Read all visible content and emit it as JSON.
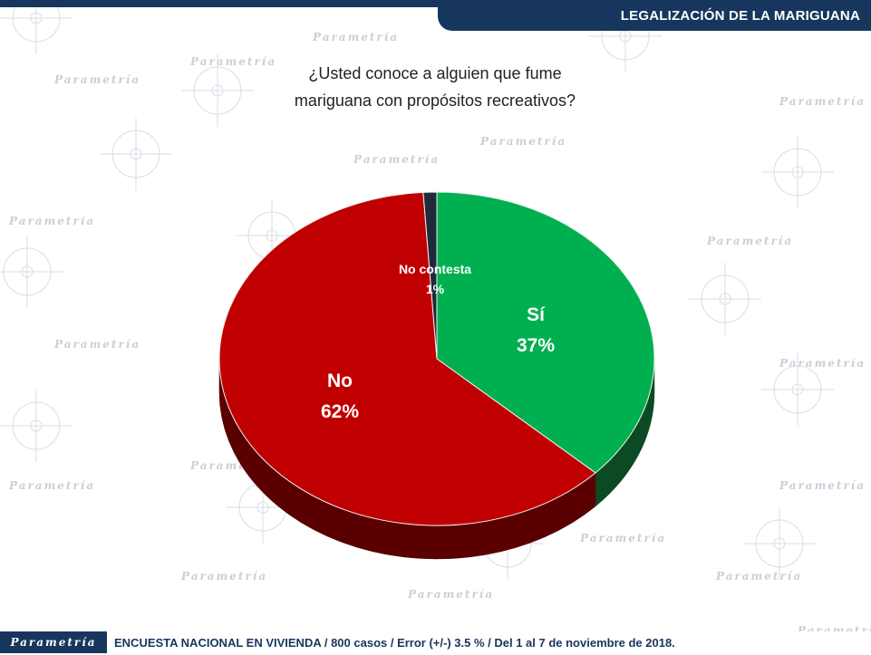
{
  "header": {
    "title": "LEGALIZACIÓN DE LA MARIGUANA"
  },
  "question": {
    "line1": "¿Usted conoce a alguien que fume",
    "line2": "mariguana con propósitos recreativos?"
  },
  "watermark": {
    "text": "Parametría"
  },
  "footer": {
    "brand": "Parametría",
    "note": "ENCUESTA NACIONAL EN VIVIENDA / 800 casos / Error (+/-) 3.5 % / Del 1 al 7 de noviembre de 2018."
  },
  "colors": {
    "navy": "#17365d",
    "si": "#00b050",
    "no": "#c00000",
    "no_contesta": "#1f2a3a"
  },
  "chart_data": {
    "type": "pie",
    "title": "¿Usted conoce a alguien que fume mariguana con propósitos recreativos?",
    "unit": "%",
    "slices": [
      {
        "label": "Sí",
        "value": 37,
        "display": "37%",
        "color": "#00b050",
        "side": "#0b4a22"
      },
      {
        "label": "No",
        "value": 62,
        "display": "62%",
        "color": "#c00000",
        "side": "#5a0000"
      },
      {
        "label": "No contesta",
        "value": 1,
        "display": "1%",
        "color": "#1f2a3a",
        "side": "#0d1520"
      }
    ]
  }
}
